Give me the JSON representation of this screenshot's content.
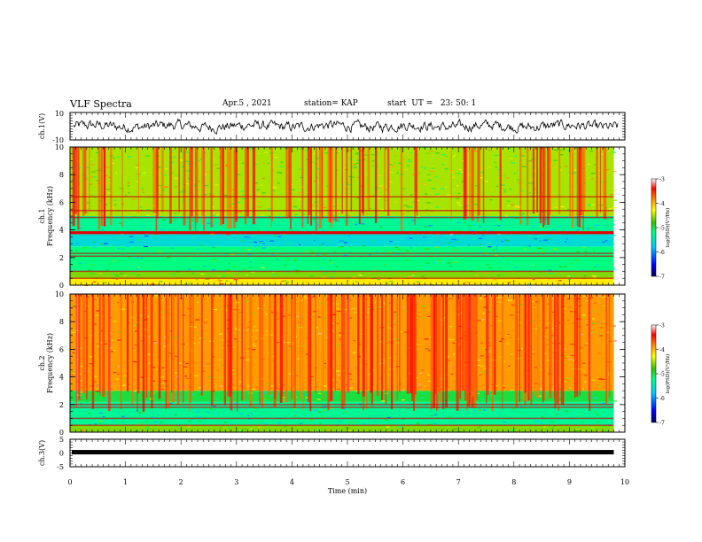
{
  "header": {
    "title": "VLF Spectra",
    "date": "Apr.5 , 2021",
    "station": "station= KAP",
    "start": "start  UT =   23: 50: 1"
  },
  "colors": {
    "spectrum_scale": [
      "#000080",
      "#0000ff",
      "#00bfff",
      "#00ff80",
      "#40c000",
      "#ffff00",
      "#ff8000",
      "#ff0000",
      "#ffffff"
    ],
    "trace": "#000000"
  },
  "chart_data": [
    {
      "type": "line",
      "panel": "ch1-waveform",
      "ylabel": "ch.1(V)",
      "ylim": [
        -10,
        10
      ],
      "yticks": [
        "10",
        "-10"
      ],
      "xlim": [
        0,
        10
      ],
      "description_values": "noisy waveform oscillating roughly between -5 and 5 V"
    },
    {
      "type": "heatmap",
      "panel": "ch1-spectrogram",
      "ylabel": "ch.1\nFrequency (kHz)",
      "ylim": [
        0,
        10
      ],
      "yticks": [
        "0",
        "2",
        "4",
        "6",
        "8",
        "10"
      ],
      "xlim": [
        0,
        10
      ],
      "x_end_data": 9.8,
      "colorbar": {
        "label": "log(PSD)(V²/Hz)",
        "ticks": [
          "-3",
          "-4",
          "-5",
          "-6",
          "-7"
        ],
        "range": [
          -7,
          -3
        ]
      },
      "bands": [
        {
          "from": 0.0,
          "to": 0.5,
          "level": -4.2
        },
        {
          "from": 0.5,
          "to": 1.0,
          "level": -4.6
        },
        {
          "from": 1.0,
          "to": 2.8,
          "level": -5.2
        },
        {
          "from": 2.8,
          "to": 3.7,
          "level": -5.6
        },
        {
          "from": 3.7,
          "to": 3.9,
          "level": -3.4
        },
        {
          "from": 3.9,
          "to": 5.0,
          "level": -5.3
        },
        {
          "from": 5.0,
          "to": 10.0,
          "level": -4.5
        }
      ]
    },
    {
      "type": "heatmap",
      "panel": "ch2-spectrogram",
      "ylabel": "ch.2\nFrequency (kHz)",
      "ylim": [
        0,
        10
      ],
      "yticks": [
        "0",
        "2",
        "4",
        "6",
        "8",
        "10"
      ],
      "xlim": [
        0,
        10
      ],
      "x_end_data": 9.8,
      "colorbar": {
        "label": "log(PSD)(V²/Hz)",
        "ticks": [
          "-3",
          "-4",
          "-5",
          "-6",
          "-7"
        ],
        "range": [
          -7,
          -3
        ]
      },
      "bands": [
        {
          "from": 0.0,
          "to": 0.5,
          "level": -4.6
        },
        {
          "from": 0.5,
          "to": 2.2,
          "level": -5.3
        },
        {
          "from": 2.2,
          "to": 3.0,
          "level": -5.0
        },
        {
          "from": 3.0,
          "to": 10.0,
          "level": -3.9
        }
      ]
    },
    {
      "type": "line",
      "panel": "ch3-waveform",
      "ylabel": "ch.3(V)",
      "ylim": [
        -5,
        5
      ],
      "yticks": [
        "5",
        "0",
        "-5"
      ],
      "xlim": [
        0,
        10
      ],
      "x_end_data": 9.8,
      "level": 0.3,
      "xlabel": "Time (min)",
      "xticks": [
        "0",
        "1",
        "2",
        "3",
        "4",
        "5",
        "6",
        "7",
        "8",
        "9",
        "10"
      ]
    }
  ]
}
